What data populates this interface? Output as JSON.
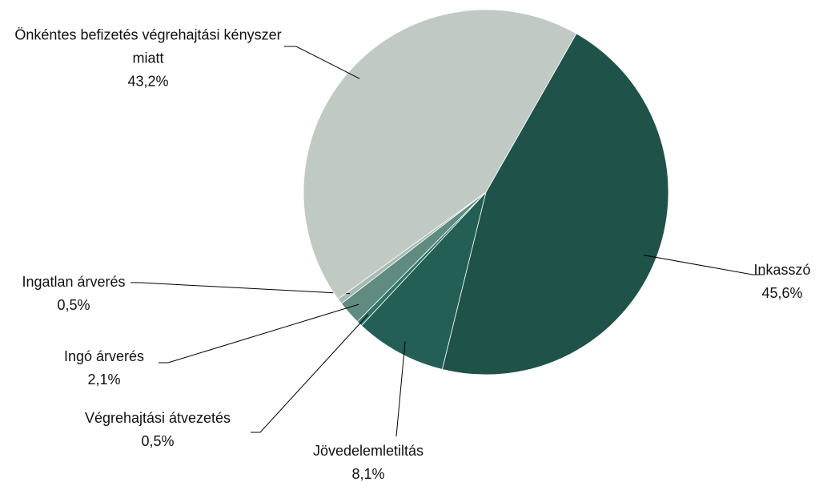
{
  "chart_data": {
    "type": "pie",
    "categories": [
      "Inkasszó",
      "Jövedelemletiltás",
      "Végrehajtási átvezetés",
      "Ingó árverés",
      "Ingatlan árverés",
      "Önkéntes befizetés végrehajtási kényszer miatt"
    ],
    "values": [
      45.6,
      8.1,
      0.5,
      2.1,
      0.5,
      43.2
    ],
    "value_labels": [
      "45,6%",
      "8,1%",
      "0,5%",
      "2,1%",
      "0,5%",
      "43,2%"
    ],
    "colors": [
      "#1f5249",
      "#245f56",
      "#2f7568",
      "#5f8b80",
      "#a9bab5",
      "#c1c9c5"
    ]
  }
}
